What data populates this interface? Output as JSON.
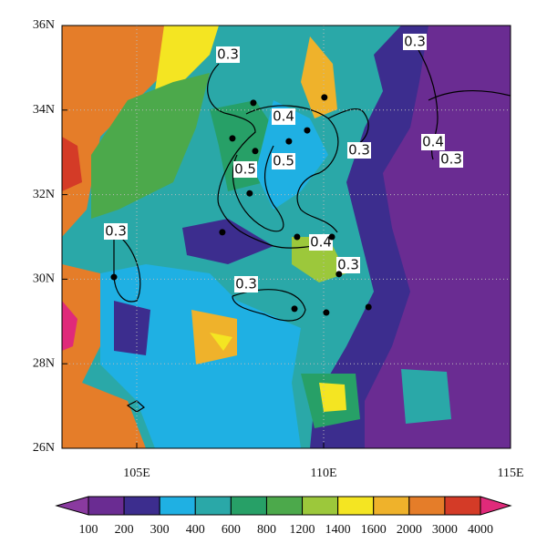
{
  "map": {
    "xlim": [
      103,
      115
    ],
    "ylim": [
      26,
      36
    ],
    "xticks": [
      {
        "value": 105,
        "label": "105E"
      },
      {
        "value": 110,
        "label": "110E"
      },
      {
        "value": 115,
        "label": "115E"
      }
    ],
    "yticks": [
      {
        "value": 26,
        "label": "26N"
      },
      {
        "value": 28,
        "label": "28N"
      },
      {
        "value": 30,
        "label": "30N"
      },
      {
        "value": 32,
        "label": "32N"
      },
      {
        "value": 34,
        "label": "34N"
      },
      {
        "value": 36,
        "label": "36N"
      }
    ],
    "grid": true,
    "stations": {
      "lon": [
        108.12,
        107.56,
        108.17,
        109.07,
        109.56,
        110.02,
        108.02,
        107.29,
        109.29,
        110.22,
        110.41,
        104.39,
        109.22,
        110.07,
        111.2
      ],
      "lat": [
        34.17,
        33.33,
        33.03,
        33.26,
        33.52,
        34.3,
        32.03,
        31.11,
        31.0,
        31.0,
        30.12,
        30.05,
        29.3,
        29.21,
        29.34
      ],
      "color": "#000000"
    },
    "contour_labels": [
      0.3,
      0.3,
      0.4,
      0.3,
      0.4,
      0.3,
      0.5,
      0.5,
      0.3,
      0.4,
      0.3,
      0.3
    ]
  },
  "colorbar": {
    "levels": [
      100,
      200,
      300,
      400,
      600,
      800,
      1200,
      1400,
      1600,
      2000,
      3000,
      4000
    ],
    "colors": [
      "#8a3aa0",
      "#6a2c92",
      "#3c2d8e",
      "#1fb0e3",
      "#2aa8a8",
      "#27a067",
      "#4ca94b",
      "#9cc83b",
      "#f4e522",
      "#efb22b",
      "#e57d29",
      "#d43b27",
      "#e02a7a"
    ]
  }
}
